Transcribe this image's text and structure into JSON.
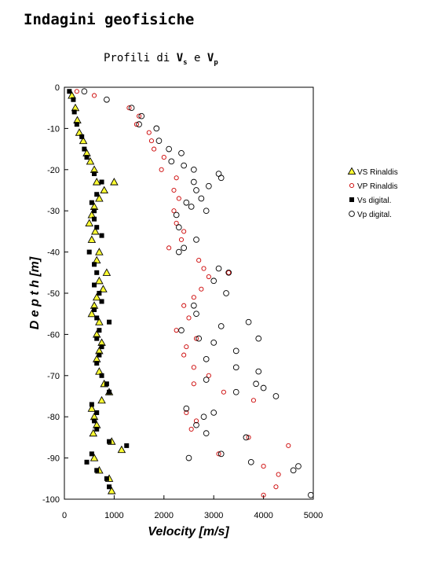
{
  "page": {
    "title": "Indagini geofisiche",
    "subtitle_prefix": "Profili di ",
    "subtitle_vs_main": "V",
    "subtitle_vs_sub": "s",
    "subtitle_join": " e ",
    "subtitle_vp_main": "V",
    "subtitle_vp_sub": "p"
  },
  "chart_data": {
    "type": "scatter",
    "title": "Profili di Vs e Vp",
    "xlabel": "Velocity [m/s]",
    "ylabel": "D e p t h  [m]",
    "xlim": [
      0,
      5000
    ],
    "ylim": [
      -100,
      0
    ],
    "xticks": [
      0,
      1000,
      2000,
      3000,
      4000,
      5000
    ],
    "yticks": [
      0,
      -10,
      -20,
      -30,
      -40,
      -50,
      -60,
      -70,
      -80,
      -90,
      -100
    ],
    "grid": false,
    "legend": "right",
    "series": [
      {
        "name": "VS Rinaldis",
        "marker": "triangle",
        "color": "#ffff33",
        "points": [
          [
            150,
            -2
          ],
          [
            220,
            -5
          ],
          [
            260,
            -8
          ],
          [
            300,
            -11
          ],
          [
            380,
            -13
          ],
          [
            450,
            -16
          ],
          [
            520,
            -18
          ],
          [
            600,
            -20
          ],
          [
            650,
            -23
          ],
          [
            800,
            -25
          ],
          [
            1000,
            -23
          ],
          [
            700,
            -27
          ],
          [
            600,
            -29
          ],
          [
            550,
            -31
          ],
          [
            500,
            -33
          ],
          [
            620,
            -35
          ],
          [
            550,
            -37
          ],
          [
            700,
            -40
          ],
          [
            650,
            -42
          ],
          [
            850,
            -45
          ],
          [
            700,
            -47
          ],
          [
            780,
            -49
          ],
          [
            650,
            -51
          ],
          [
            600,
            -53
          ],
          [
            550,
            -55
          ],
          [
            700,
            -57
          ],
          [
            650,
            -60
          ],
          [
            750,
            -62
          ],
          [
            700,
            -64
          ],
          [
            650,
            -66
          ],
          [
            700,
            -69
          ],
          [
            800,
            -72
          ],
          [
            900,
            -74
          ],
          [
            750,
            -76
          ],
          [
            550,
            -78
          ],
          [
            600,
            -80
          ],
          [
            650,
            -82
          ],
          [
            580,
            -84
          ],
          [
            950,
            -86
          ],
          [
            1150,
            -88
          ],
          [
            600,
            -90
          ],
          [
            700,
            -93
          ],
          [
            900,
            -95
          ],
          [
            950,
            -98
          ]
        ]
      },
      {
        "name": "VP Rinaldis",
        "marker": "open-circle-small",
        "color": "#cc0000",
        "points": [
          [
            250,
            -1
          ],
          [
            600,
            -2
          ],
          [
            1300,
            -5
          ],
          [
            1500,
            -7
          ],
          [
            1450,
            -9
          ],
          [
            1700,
            -11
          ],
          [
            1750,
            -13
          ],
          [
            1800,
            -15
          ],
          [
            2000,
            -17
          ],
          [
            1950,
            -20
          ],
          [
            2250,
            -22
          ],
          [
            2200,
            -25
          ],
          [
            2300,
            -27
          ],
          [
            2200,
            -30
          ],
          [
            2250,
            -33
          ],
          [
            2400,
            -35
          ],
          [
            2350,
            -37
          ],
          [
            2100,
            -39
          ],
          [
            2700,
            -42
          ],
          [
            2800,
            -44
          ],
          [
            2900,
            -46
          ],
          [
            3300,
            -45
          ],
          [
            2750,
            -49
          ],
          [
            2600,
            -51
          ],
          [
            2400,
            -53
          ],
          [
            2500,
            -56
          ],
          [
            2250,
            -59
          ],
          [
            2650,
            -61
          ],
          [
            2450,
            -63
          ],
          [
            2400,
            -65
          ],
          [
            2600,
            -68
          ],
          [
            2900,
            -70
          ],
          [
            2600,
            -72
          ],
          [
            3200,
            -74
          ],
          [
            3800,
            -76
          ],
          [
            2450,
            -79
          ],
          [
            2650,
            -81
          ],
          [
            2550,
            -83
          ],
          [
            3700,
            -85
          ],
          [
            4500,
            -87
          ],
          [
            3100,
            -89
          ],
          [
            4000,
            -92
          ],
          [
            4300,
            -94
          ],
          [
            4250,
            -97
          ],
          [
            4000,
            -99
          ]
        ]
      },
      {
        "name": "Vs digital.",
        "marker": "filled-square",
        "color": "#000000",
        "points": [
          [
            100,
            -1
          ],
          [
            180,
            -3
          ],
          [
            200,
            -6
          ],
          [
            250,
            -9
          ],
          [
            350,
            -12
          ],
          [
            400,
            -15
          ],
          [
            450,
            -17
          ],
          [
            600,
            -21
          ],
          [
            750,
            -23
          ],
          [
            650,
            -26
          ],
          [
            550,
            -28
          ],
          [
            600,
            -30
          ],
          [
            600,
            -32
          ],
          [
            650,
            -34
          ],
          [
            750,
            -36
          ],
          [
            500,
            -40
          ],
          [
            600,
            -43
          ],
          [
            650,
            -45
          ],
          [
            600,
            -48
          ],
          [
            700,
            -50
          ],
          [
            750,
            -52
          ],
          [
            600,
            -54
          ],
          [
            650,
            -56
          ],
          [
            900,
            -57
          ],
          [
            700,
            -59
          ],
          [
            650,
            -61
          ],
          [
            750,
            -63
          ],
          [
            700,
            -65
          ],
          [
            650,
            -67
          ],
          [
            750,
            -70
          ],
          [
            850,
            -72
          ],
          [
            900,
            -74
          ],
          [
            550,
            -77
          ],
          [
            650,
            -79
          ],
          [
            600,
            -81
          ],
          [
            650,
            -83
          ],
          [
            900,
            -86
          ],
          [
            1250,
            -87
          ],
          [
            550,
            -89
          ],
          [
            450,
            -91
          ],
          [
            650,
            -93
          ],
          [
            850,
            -95
          ],
          [
            900,
            -97
          ]
        ]
      },
      {
        "name": "Vp digital.",
        "marker": "open-circle",
        "color": "#000000",
        "points": [
          [
            400,
            -1
          ],
          [
            850,
            -3
          ],
          [
            1350,
            -5
          ],
          [
            1550,
            -7
          ],
          [
            1500,
            -9
          ],
          [
            1850,
            -10
          ],
          [
            1900,
            -13
          ],
          [
            2100,
            -15
          ],
          [
            2350,
            -16
          ],
          [
            2150,
            -18
          ],
          [
            2400,
            -19
          ],
          [
            2600,
            -20
          ],
          [
            3100,
            -21
          ],
          [
            3150,
            -22
          ],
          [
            2600,
            -23
          ],
          [
            2900,
            -24
          ],
          [
            2650,
            -25
          ],
          [
            2750,
            -27
          ],
          [
            2450,
            -28
          ],
          [
            2550,
            -29
          ],
          [
            2250,
            -31
          ],
          [
            2850,
            -30
          ],
          [
            2300,
            -34
          ],
          [
            2650,
            -37
          ],
          [
            2400,
            -39
          ],
          [
            2300,
            -40
          ],
          [
            3100,
            -44
          ],
          [
            3300,
            -45
          ],
          [
            3000,
            -47
          ],
          [
            3250,
            -50
          ],
          [
            2600,
            -53
          ],
          [
            2650,
            -55
          ],
          [
            3150,
            -58
          ],
          [
            3700,
            -57
          ],
          [
            2350,
            -59
          ],
          [
            2700,
            -61
          ],
          [
            3900,
            -61
          ],
          [
            3000,
            -62
          ],
          [
            3450,
            -64
          ],
          [
            2850,
            -66
          ],
          [
            3450,
            -68
          ],
          [
            3900,
            -69
          ],
          [
            2850,
            -71
          ],
          [
            3850,
            -72
          ],
          [
            4000,
            -73
          ],
          [
            3450,
            -74
          ],
          [
            4250,
            -75
          ],
          [
            2450,
            -78
          ],
          [
            3000,
            -79
          ],
          [
            2800,
            -80
          ],
          [
            2650,
            -82
          ],
          [
            2850,
            -84
          ],
          [
            3650,
            -85
          ],
          [
            3150,
            -89
          ],
          [
            2500,
            -90
          ],
          [
            3750,
            -91
          ],
          [
            4600,
            -93
          ],
          [
            4700,
            -92
          ],
          [
            4950,
            -99
          ]
        ]
      }
    ]
  }
}
